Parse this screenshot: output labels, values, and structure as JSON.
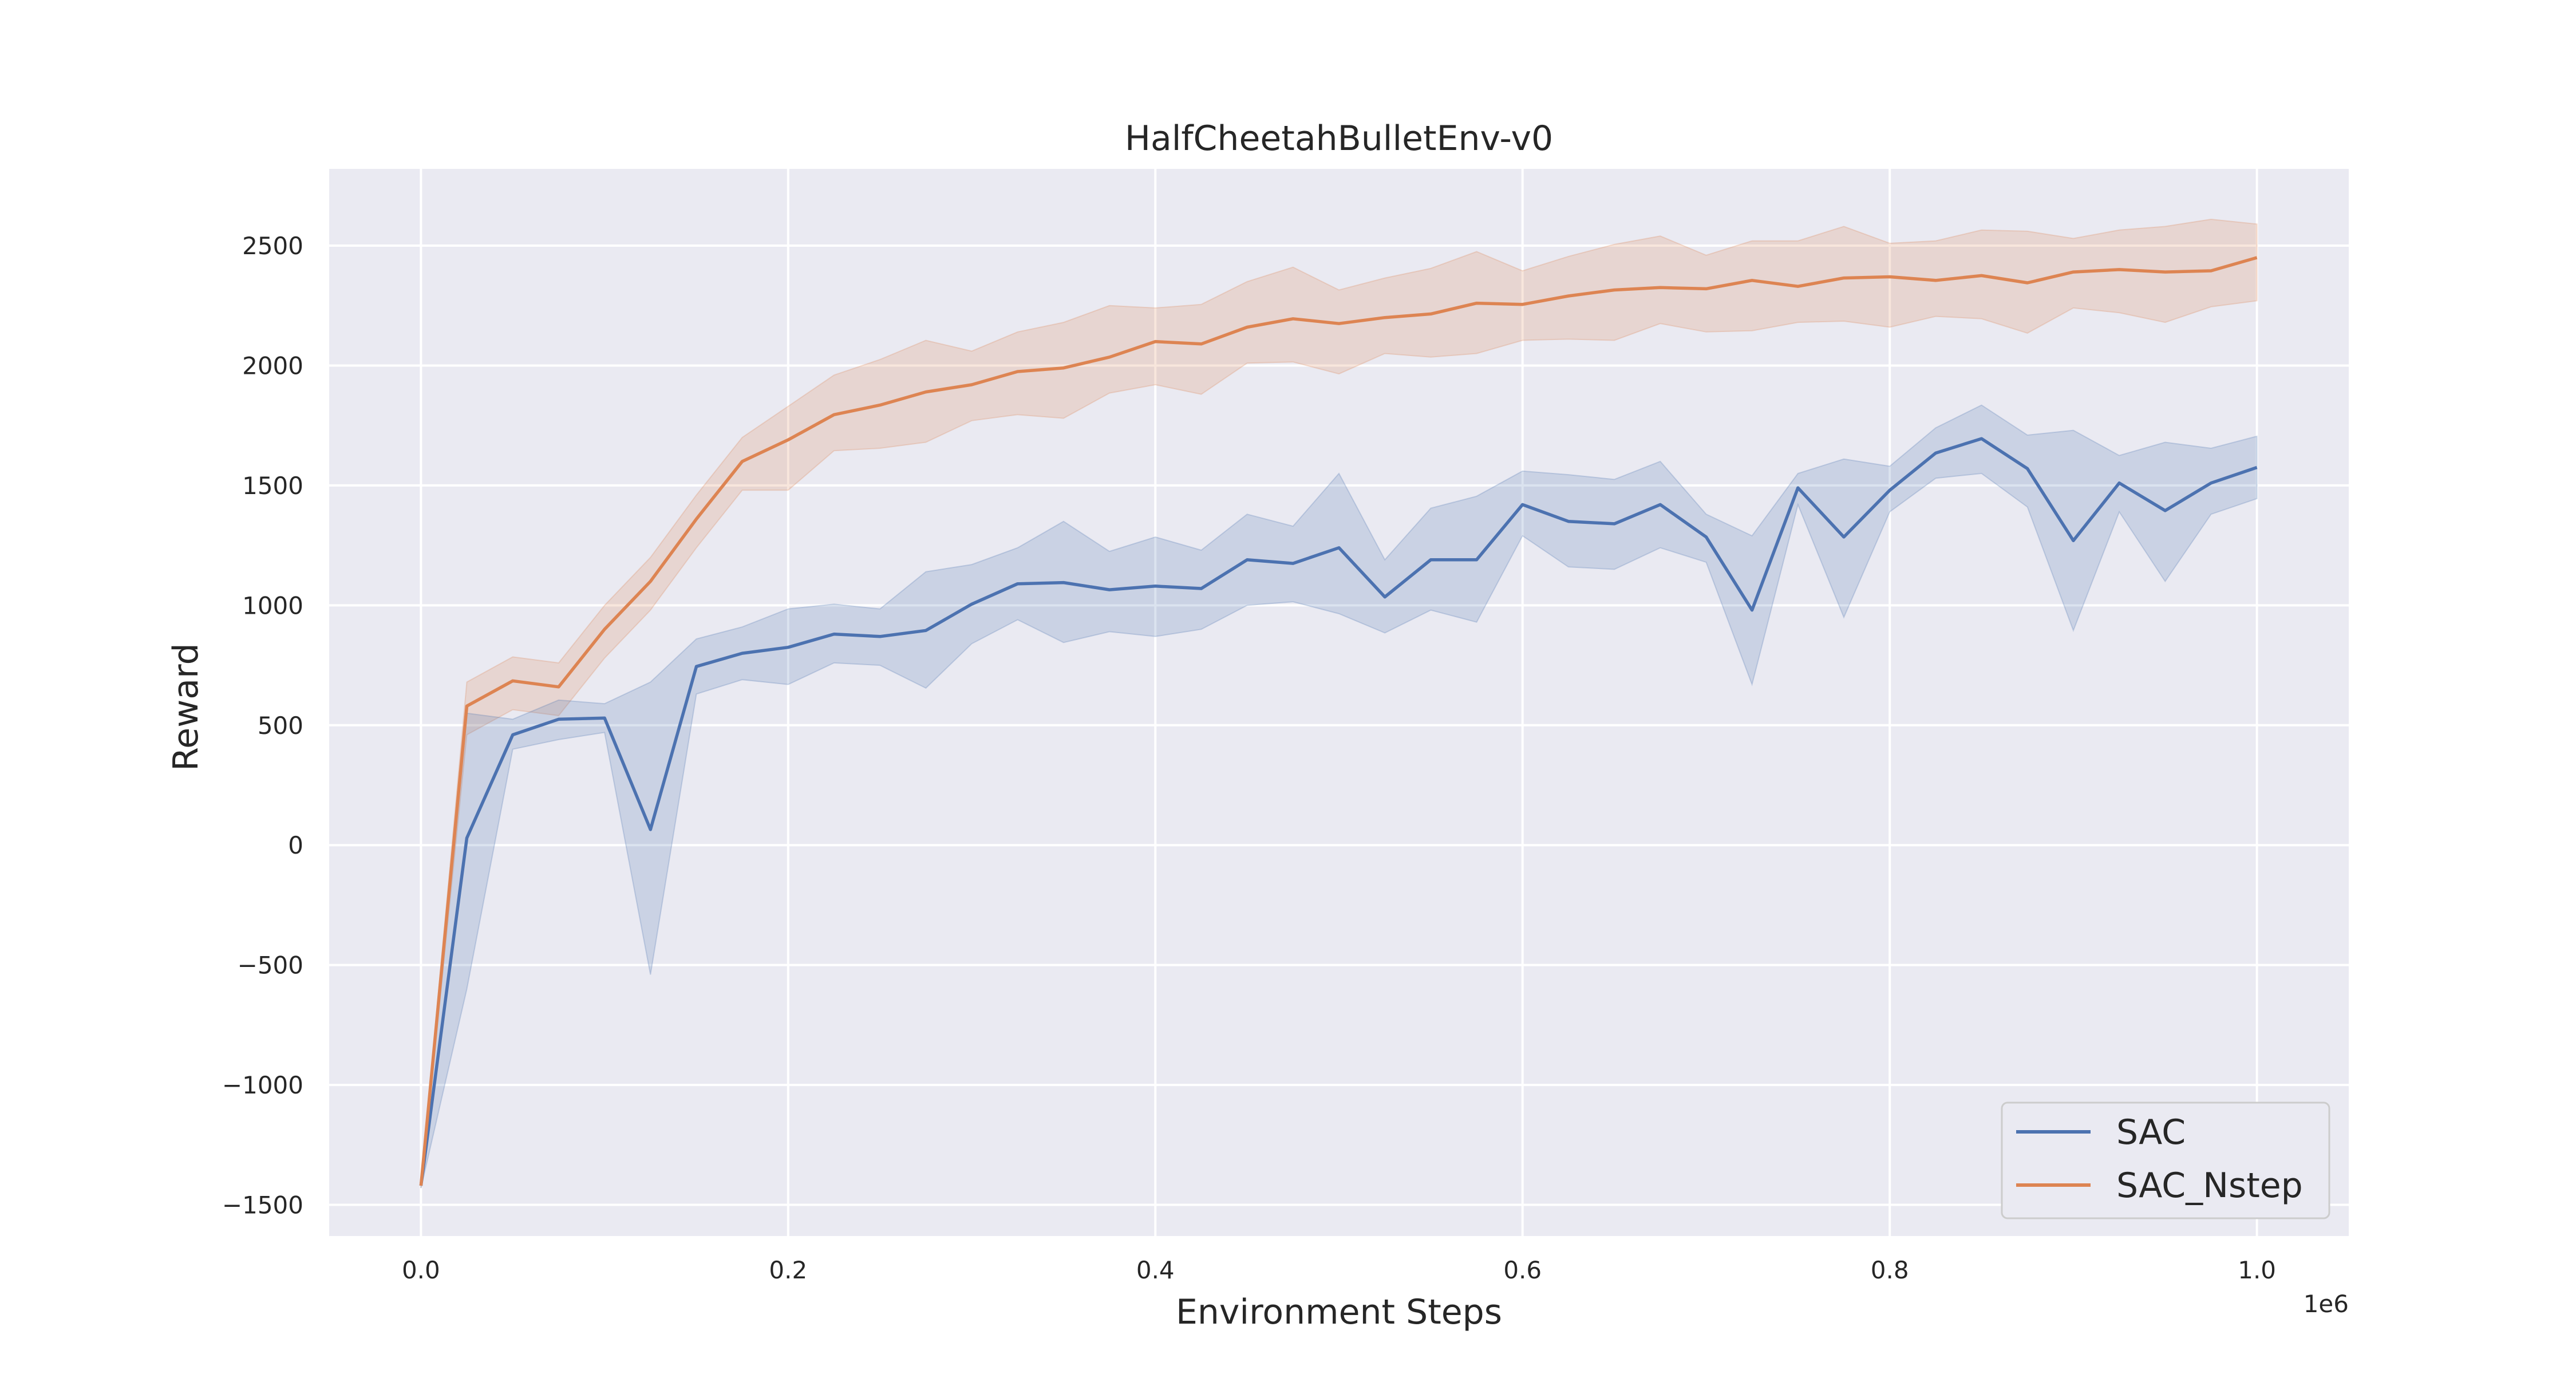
{
  "chart_data": {
    "type": "line",
    "title": "HalfCheetahBulletEnv-v0",
    "xlabel": "Environment Steps",
    "ylabel": "Reward",
    "x_offset_text": "1e6",
    "xlim": [
      -0.05,
      1.05
    ],
    "ylim": [
      -1630,
      2820
    ],
    "xticks": [
      0.0,
      0.2,
      0.4,
      0.6,
      0.8,
      1.0
    ],
    "xtick_labels": [
      "0.0",
      "0.2",
      "0.4",
      "0.6",
      "0.8",
      "1.0"
    ],
    "yticks": [
      -1500,
      -1000,
      -500,
      0,
      500,
      1000,
      1500,
      2000,
      2500
    ],
    "ytick_labels": [
      "−1500",
      "−1000",
      "−500",
      "0",
      "500",
      "1000",
      "1500",
      "2000",
      "2500"
    ],
    "grid": true,
    "legend_position": "lower-right",
    "background": "#eaeaf2",
    "x": [
      0.0,
      0.025,
      0.05,
      0.075,
      0.1,
      0.125,
      0.15,
      0.175,
      0.2,
      0.225,
      0.25,
      0.275,
      0.3,
      0.325,
      0.35,
      0.375,
      0.4,
      0.425,
      0.45,
      0.475,
      0.5,
      0.525,
      0.55,
      0.575,
      0.6,
      0.625,
      0.65,
      0.675,
      0.7,
      0.725,
      0.75,
      0.775,
      0.8,
      0.825,
      0.85,
      0.875,
      0.9,
      0.925,
      0.95,
      0.975,
      1.0
    ],
    "series": [
      {
        "name": "SAC",
        "color": "#4c72b0",
        "values": [
          -1420,
          30,
          460,
          525,
          530,
          65,
          745,
          800,
          825,
          880,
          870,
          895,
          1005,
          1090,
          1095,
          1065,
          1080,
          1070,
          1190,
          1175,
          1240,
          1035,
          1190,
          1190,
          1420,
          1350,
          1340,
          1420,
          1285,
          980,
          1490,
          1285,
          1480,
          1635,
          1695,
          1570,
          1270,
          1510,
          1395,
          1510,
          1575
        ],
        "lower": [
          -1430,
          -600,
          400,
          440,
          470,
          -540,
          630,
          690,
          670,
          760,
          750,
          655,
          840,
          940,
          845,
          890,
          870,
          900,
          1000,
          1015,
          965,
          885,
          980,
          930,
          1290,
          1160,
          1150,
          1240,
          1180,
          670,
          1420,
          950,
          1390,
          1530,
          1550,
          1410,
          895,
          1390,
          1100,
          1380,
          1445
        ],
        "upper": [
          -1410,
          550,
          525,
          605,
          590,
          680,
          860,
          910,
          985,
          1005,
          985,
          1140,
          1170,
          1240,
          1350,
          1225,
          1285,
          1230,
          1380,
          1330,
          1550,
          1190,
          1405,
          1455,
          1560,
          1545,
          1525,
          1600,
          1380,
          1290,
          1550,
          1610,
          1580,
          1740,
          1835,
          1710,
          1730,
          1625,
          1680,
          1655,
          1705
        ]
      },
      {
        "name": "SAC_Nstep",
        "color": "#dd8452",
        "values": [
          -1420,
          580,
          685,
          660,
          900,
          1100,
          1360,
          1600,
          1690,
          1795,
          1835,
          1890,
          1920,
          1975,
          1990,
          2035,
          2100,
          2090,
          2160,
          2195,
          2175,
          2200,
          2215,
          2260,
          2255,
          2290,
          2315,
          2325,
          2320,
          2355,
          2330,
          2365,
          2370,
          2355,
          2375,
          2345,
          2390,
          2400,
          2390,
          2395,
          2450
        ]
      }
    ]
  }
}
